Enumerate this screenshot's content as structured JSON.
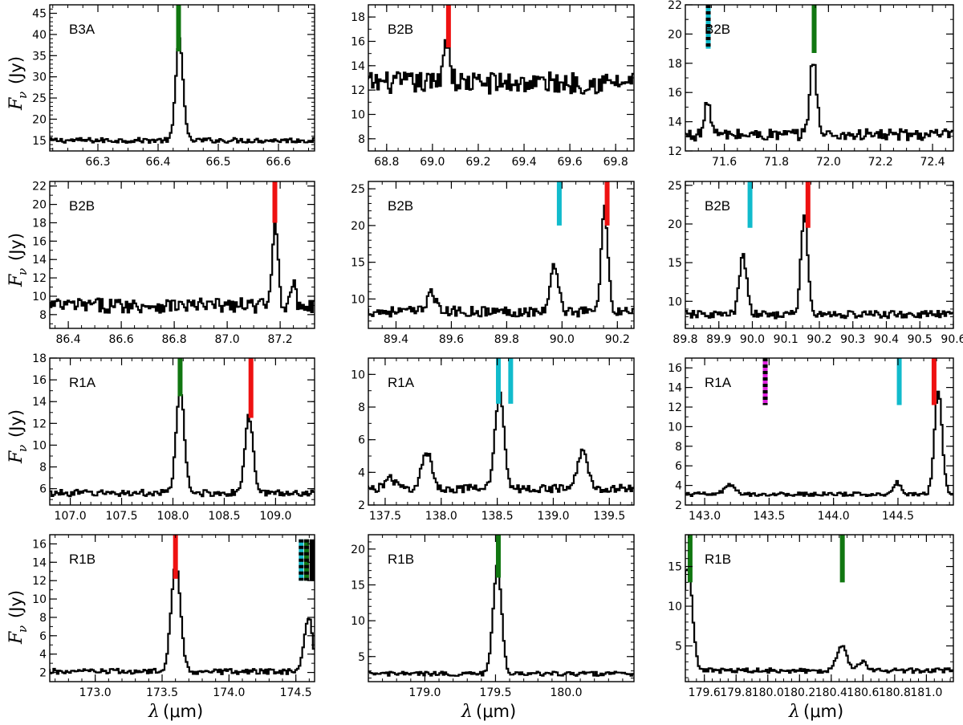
{
  "figure": {
    "ylabel_symbol": "F",
    "ylabel_sub": "ν",
    "ylabel_unit": "(Jy)",
    "xlabel_symbol": "λ",
    "xlabel_unit": "(μm)"
  },
  "colors": {
    "red": "#ee1111",
    "green": "#117711",
    "cyan": "#11bbcc",
    "magenta": "#dd22dd",
    "black": "#000000"
  },
  "chart_data": [
    {
      "type": "line",
      "label": "B3A",
      "xlim": [
        66.22,
        66.66
      ],
      "ylim": [
        12.5,
        47
      ],
      "xticks": [
        66.3,
        66.4,
        66.5,
        66.6
      ],
      "yticks": [
        15,
        20,
        25,
        30,
        35,
        40,
        45
      ],
      "markers": [
        {
          "x": 66.434,
          "y0": 36,
          "y1": 47,
          "color": "green"
        }
      ],
      "peaks": [
        {
          "x": 66.437,
          "h": 24,
          "w": 0.006
        }
      ],
      "base": 15,
      "noise": 0.6
    },
    {
      "type": "line",
      "label": "B2B",
      "xlim": [
        68.72,
        69.88
      ],
      "ylim": [
        7,
        19
      ],
      "xticks": [
        68.8,
        69.0,
        69.2,
        69.4,
        69.6,
        69.8
      ],
      "yticks": [
        8,
        10,
        12,
        14,
        16,
        18
      ],
      "markers": [
        {
          "x": 69.07,
          "y0": 15.5,
          "y1": 19,
          "color": "red"
        }
      ],
      "peaks": [
        {
          "x": 69.065,
          "h": 3.5,
          "w": 0.015
        }
      ],
      "base": 12.6,
      "noise": 0.9
    },
    {
      "type": "line",
      "label": "B2B",
      "xlim": [
        71.45,
        72.48
      ],
      "ylim": [
        12,
        22
      ],
      "xticks": [
        71.6,
        71.8,
        72.0,
        72.2,
        72.4
      ],
      "yticks": [
        12,
        14,
        16,
        18,
        20,
        22
      ],
      "markers": [
        {
          "x": 71.538,
          "y0": 19,
          "y1": 22,
          "color": "cyan-black"
        },
        {
          "x": 71.945,
          "y0": 18.7,
          "y1": 22,
          "color": "green"
        }
      ],
      "peaks": [
        {
          "x": 71.945,
          "h": 5.2,
          "w": 0.013
        },
        {
          "x": 71.54,
          "h": 2.2,
          "w": 0.012
        }
      ],
      "base": 13.1,
      "noise": 0.4
    },
    {
      "type": "line",
      "label": "B2B",
      "xlim": [
        86.33,
        87.33
      ],
      "ylim": [
        6.5,
        22.5
      ],
      "xticks": [
        86.4,
        86.6,
        86.8,
        87.0,
        87.2
      ],
      "yticks": [
        8,
        10,
        12,
        14,
        16,
        18,
        20,
        22
      ],
      "markers": [
        {
          "x": 87.18,
          "y0": 18,
          "y1": 22.5,
          "color": "red"
        }
      ],
      "peaks": [
        {
          "x": 87.185,
          "h": 9.5,
          "w": 0.01
        },
        {
          "x": 87.25,
          "h": 2.5,
          "w": 0.01
        }
      ],
      "base": 9,
      "noise": 0.8
    },
    {
      "type": "line",
      "label": "B2B",
      "xlim": [
        89.3,
        90.26
      ],
      "ylim": [
        6,
        26
      ],
      "xticks": [
        89.4,
        89.6,
        89.8,
        90.0,
        90.2
      ],
      "yticks": [
        10,
        15,
        20,
        25
      ],
      "markers": [
        {
          "x": 89.99,
          "y0": 20,
          "y1": 26,
          "color": "cyan"
        },
        {
          "x": 90.163,
          "y0": 20,
          "y1": 26,
          "color": "red"
        }
      ],
      "peaks": [
        {
          "x": 90.157,
          "h": 14,
          "w": 0.012
        },
        {
          "x": 89.977,
          "h": 6.5,
          "w": 0.014
        },
        {
          "x": 89.53,
          "h": 3,
          "w": 0.014
        }
      ],
      "base": 8.3,
      "noise": 0.7
    },
    {
      "type": "line",
      "label": "B2B",
      "xlim": [
        89.8,
        90.6
      ],
      "ylim": [
        6.5,
        25.5
      ],
      "xticks": [
        89.8,
        89.9,
        90.0,
        90.1,
        90.2,
        90.3,
        90.4,
        90.5,
        90.6
      ],
      "yticks": [
        10,
        15,
        20,
        25
      ],
      "markers": [
        {
          "x": 89.993,
          "y0": 19.5,
          "y1": 25.5,
          "color": "cyan"
        },
        {
          "x": 90.166,
          "y0": 19.5,
          "y1": 25.5,
          "color": "red"
        }
      ],
      "peaks": [
        {
          "x": 90.158,
          "h": 13,
          "w": 0.01
        },
        {
          "x": 89.975,
          "h": 7.5,
          "w": 0.011
        }
      ],
      "base": 8.3,
      "noise": 0.5
    },
    {
      "type": "line",
      "label": "R1A",
      "xlim": [
        106.8,
        109.38
      ],
      "ylim": [
        4.5,
        18
      ],
      "xticks": [
        107.0,
        107.5,
        108.0,
        108.5,
        109.0
      ],
      "yticks": [
        6,
        8,
        10,
        12,
        14,
        16,
        18
      ],
      "markers": [
        {
          "x": 108.07,
          "y0": 14.5,
          "y1": 18,
          "color": "green"
        },
        {
          "x": 108.76,
          "y0": 12.5,
          "y1": 18,
          "color": "red"
        }
      ],
      "peaks": [
        {
          "x": 108.08,
          "h": 9.3,
          "w": 0.04
        },
        {
          "x": 108.75,
          "h": 7,
          "w": 0.04
        }
      ],
      "base": 5.6,
      "noise": 0.3
    },
    {
      "type": "line",
      "label": "R1A",
      "xlim": [
        137.35,
        139.72
      ],
      "ylim": [
        2,
        11
      ],
      "xticks": [
        137.5,
        138.0,
        138.5,
        139.0,
        139.5
      ],
      "yticks": [
        2,
        4,
        6,
        8,
        10
      ],
      "markers": [
        {
          "x": 138.51,
          "y0": 8.2,
          "y1": 11,
          "color": "cyan"
        },
        {
          "x": 138.62,
          "y0": 8.2,
          "y1": 11,
          "color": "cyan"
        }
      ],
      "peaks": [
        {
          "x": 138.53,
          "h": 6,
          "w": 0.04
        },
        {
          "x": 137.88,
          "h": 2.2,
          "w": 0.045
        },
        {
          "x": 139.27,
          "h": 2.3,
          "w": 0.045
        },
        {
          "x": 137.55,
          "h": 0.6,
          "w": 0.05
        }
      ],
      "base": 3,
      "noise": 0.25
    },
    {
      "type": "line",
      "label": "R1A",
      "xlim": [
        142.85,
        144.93
      ],
      "ylim": [
        2,
        17
      ],
      "xticks": [
        143.0,
        143.5,
        144.0,
        144.5
      ],
      "yticks": [
        2,
        4,
        6,
        8,
        10,
        12,
        14,
        16
      ],
      "markers": [
        {
          "x": 143.47,
          "y0": 12.2,
          "y1": 17,
          "color": "magenta-black"
        },
        {
          "x": 144.51,
          "y0": 12.2,
          "y1": 17,
          "color": "cyan"
        },
        {
          "x": 144.78,
          "y0": 12.2,
          "y1": 17,
          "color": "red"
        }
      ],
      "peaks": [
        {
          "x": 144.82,
          "h": 10.5,
          "w": 0.03
        },
        {
          "x": 144.5,
          "h": 1.2,
          "w": 0.03
        },
        {
          "x": 143.2,
          "h": 0.9,
          "w": 0.04
        }
      ],
      "base": 3.1,
      "noise": 0.2
    },
    {
      "type": "line",
      "label": "R1B",
      "xlim": [
        172.66,
        174.64
      ],
      "ylim": [
        1,
        17
      ],
      "xticks": [
        173.0,
        173.5,
        174.0,
        174.5
      ],
      "yticks": [
        2,
        4,
        6,
        8,
        10,
        12,
        14,
        16
      ],
      "markers": [
        {
          "x": 173.6,
          "y0": 12.2,
          "y1": 17,
          "color": "red"
        },
        {
          "x": 174.54,
          "y0": 12,
          "y1": 16.5,
          "color": "cyan-black"
        },
        {
          "x": 174.58,
          "y0": 12,
          "y1": 16.5,
          "color": "green-black"
        },
        {
          "x": 174.62,
          "y0": 12,
          "y1": 16.5,
          "color": "black"
        }
      ],
      "peaks": [
        {
          "x": 173.61,
          "h": 11.8,
          "w": 0.035
        },
        {
          "x": 174.6,
          "h": 6,
          "w": 0.03
        }
      ],
      "base": 2.1,
      "noise": 0.3
    },
    {
      "type": "line",
      "label": "R1B",
      "xlim": [
        178.6,
        180.48
      ],
      "ylim": [
        1.5,
        22
      ],
      "xticks": [
        179.0,
        179.5,
        180.0
      ],
      "yticks": [
        5,
        10,
        15,
        20
      ],
      "markers": [
        {
          "x": 179.52,
          "y0": 16,
          "y1": 22,
          "color": "green"
        }
      ],
      "peaks": [
        {
          "x": 179.52,
          "h": 15,
          "w": 0.03
        }
      ],
      "base": 2.6,
      "noise": 0.3
    },
    {
      "type": "line",
      "label": "R1B",
      "xlim": [
        179.48,
        181.17
      ],
      "ylim": [
        0.5,
        19
      ],
      "xticks": [
        179.6,
        179.8,
        180.0,
        180.2,
        180.4,
        180.6,
        180.8,
        181.0
      ],
      "yticks": [
        5,
        10,
        15
      ],
      "markers": [
        {
          "x": 179.51,
          "y0": 13,
          "y1": 19,
          "color": "green"
        },
        {
          "x": 180.47,
          "y0": 13,
          "y1": 19,
          "color": "green"
        }
      ],
      "peaks": [
        {
          "x": 179.5,
          "h": 13,
          "w": 0.03
        },
        {
          "x": 180.47,
          "h": 3.2,
          "w": 0.03
        },
        {
          "x": 180.6,
          "h": 1,
          "w": 0.03
        }
      ],
      "base": 1.9,
      "noise": 0.3
    }
  ]
}
